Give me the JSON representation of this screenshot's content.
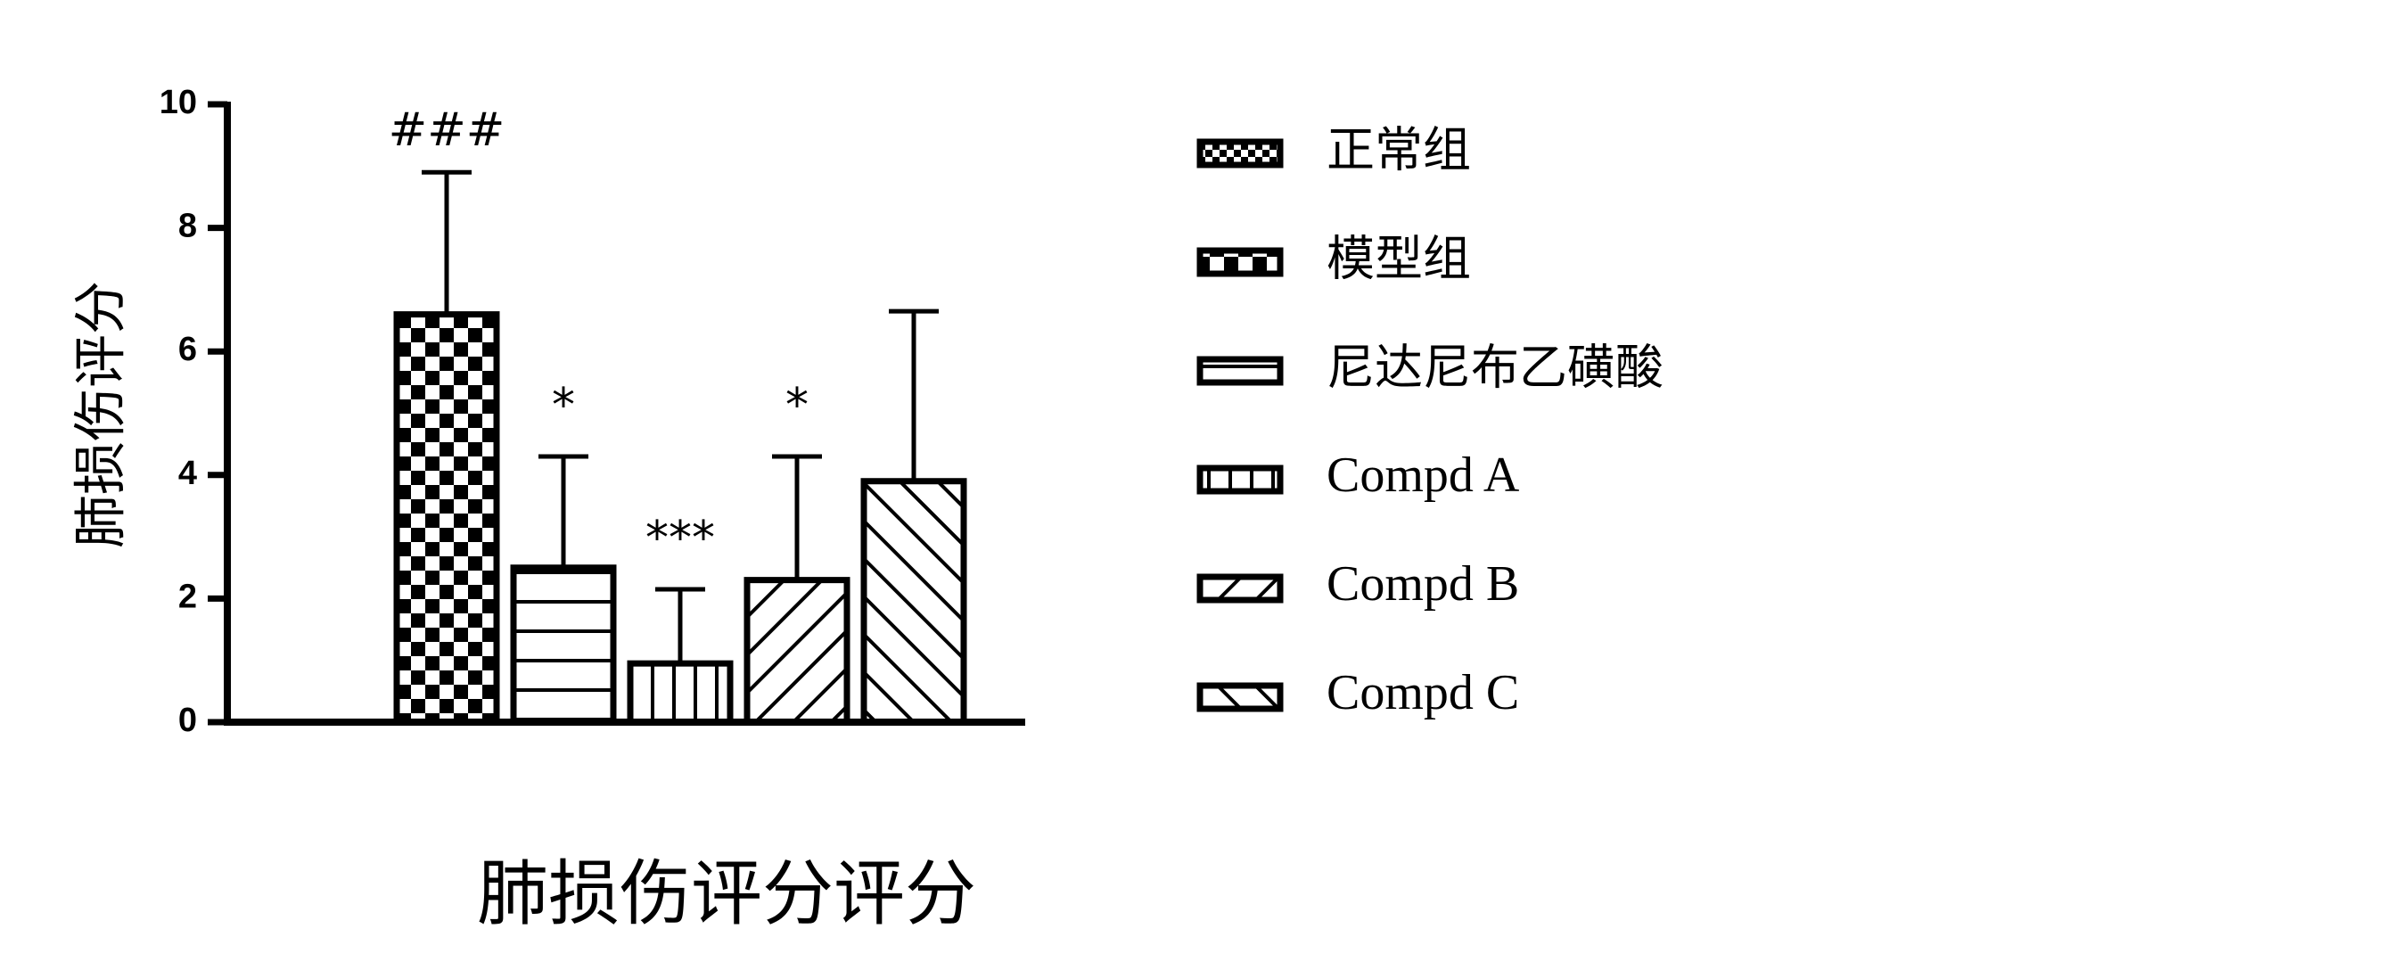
{
  "chart_data": {
    "type": "bar",
    "title": "",
    "xlabel": "肺损伤评分评分",
    "ylabel": "肺损伤评分",
    "ylim": [
      0,
      10
    ],
    "yticks": [
      "0",
      "2",
      "4",
      "6",
      "8",
      "10"
    ],
    "grid": false,
    "legend_position": "right",
    "series": [
      {
        "name": "正常组",
        "value": 0,
        "error": 0,
        "annotation": "",
        "pattern": "fine-checker"
      },
      {
        "name": "模型组",
        "value": 6.6,
        "error": 2.3,
        "annotation": "###",
        "pattern": "checker"
      },
      {
        "name": "尼达尼布乙磺酸",
        "value": 2.5,
        "error": 1.8,
        "annotation": "*",
        "pattern": "horizontal-lines"
      },
      {
        "name": "Compd A",
        "value": 0.95,
        "error": 1.2,
        "annotation": "***",
        "pattern": "vertical-lines"
      },
      {
        "name": "Compd B",
        "value": 2.3,
        "error": 2.0,
        "annotation": "*",
        "pattern": "diagonal-up"
      },
      {
        "name": "Compd C",
        "value": 3.9,
        "error": 2.75,
        "annotation": "",
        "pattern": "diagonal-down"
      }
    ]
  }
}
